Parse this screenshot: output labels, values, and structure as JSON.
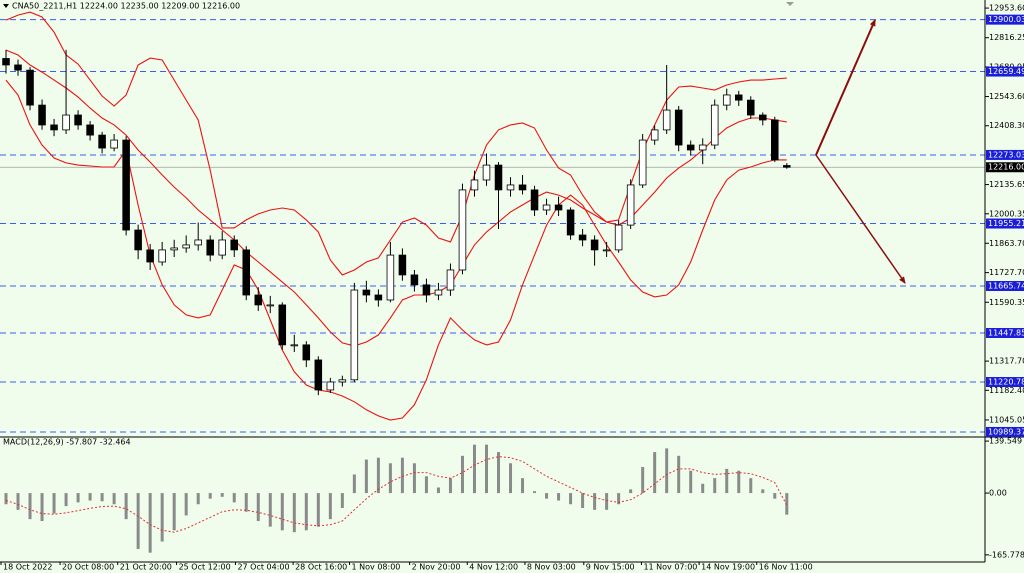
{
  "chart_data": [
    {
      "type": "candlestick",
      "title": "CNA50_2211,H1  12224.00 12235.00 12209.00 12216.00",
      "xlim": [
        -0.5,
        81.5
      ],
      "ylim": [
        10966,
        12991
      ],
      "yticks": [
        {
          "value": 12953.6,
          "label": "12953.60"
        },
        12816.25,
        12680.95,
        {
          "value": 12543.6,
          "label": "12543.60"
        },
        {
          "value": 12408.3,
          "label": "12408.30"
        },
        12135.65,
        12000.35,
        {
          "value": 11863.7,
          "label": "11863.70"
        },
        {
          "value": 11727.7,
          "label": "11727.70"
        },
        11590.35,
        {
          "value": 11317.7,
          "label": "11317.70"
        },
        {
          "value": 11182.4,
          "label": "11182.40"
        },
        11045.05
      ],
      "levels": [
        12900.03,
        12659.49,
        12273.03,
        11955.21,
        11665.74,
        11447.85,
        11220.78,
        10989.37
      ],
      "level_color": "#3a5ef0",
      "level_box_color": "#1a1ed8",
      "current_price": {
        "value": 12216,
        "label": "12216.00"
      },
      "candle_color": "#000000",
      "up_fill": "#ffffff",
      "band_color": "#f01010",
      "open": [
        12720,
        12690,
        12666,
        12504,
        12412,
        12389,
        12458,
        12412,
        12365,
        12305,
        12342,
        11925,
        11833,
        11777,
        11833,
        11842,
        11856,
        11879,
        11809,
        11879,
        11833,
        11624,
        11578,
        11578,
        11393,
        11393,
        11323,
        11184,
        11221,
        11231,
        11647,
        11624,
        11601,
        11809,
        11717,
        11671,
        11624,
        11647,
        11740,
        12111,
        12157,
        12226,
        12111,
        12134,
        12111,
        12018,
        12041,
        12018,
        11902,
        11879,
        11833,
        11833,
        11948,
        12134,
        12342,
        12389,
        12481,
        12319,
        12296,
        12319,
        12504,
        12551,
        12527,
        12458,
        12435,
        12224
      ],
      "high": [
        12760,
        12715,
        12680,
        12530,
        12440,
        12760,
        12480,
        12430,
        12380,
        12370,
        12360,
        11950,
        11860,
        11870,
        11880,
        11900,
        11960,
        11900,
        11920,
        11900,
        11850,
        11660,
        11620,
        11590,
        11440,
        11410,
        11340,
        11240,
        11250,
        11680,
        11690,
        11650,
        11870,
        11840,
        11740,
        11700,
        11680,
        11770,
        12140,
        12200,
        12280,
        12240,
        12170,
        12180,
        12130,
        12070,
        12080,
        12030,
        11930,
        11900,
        11870,
        11970,
        12160,
        12370,
        12410,
        12690,
        12500,
        12340,
        12350,
        12530,
        12580,
        12570,
        12545,
        12470,
        12450,
        12235
      ],
      "low": [
        12650,
        12640,
        12480,
        12390,
        12360,
        12370,
        12390,
        12340,
        12280,
        12290,
        11900,
        11790,
        11740,
        11760,
        11800,
        11820,
        11830,
        11780,
        11790,
        11800,
        11600,
        11550,
        11540,
        11370,
        11360,
        11290,
        11160,
        11170,
        11200,
        11220,
        11590,
        11570,
        11590,
        11690,
        11640,
        11590,
        11600,
        11620,
        11720,
        12080,
        12130,
        11930,
        12080,
        12090,
        11990,
        11995,
        11990,
        11880,
        11850,
        11760,
        11800,
        11820,
        11930,
        12120,
        12320,
        12370,
        12290,
        12270,
        12230,
        12300,
        12480,
        12500,
        12440,
        12410,
        12240,
        12209
      ],
      "close": [
        12690,
        12666,
        12504,
        12412,
        12389,
        12458,
        12412,
        12365,
        12305,
        12342,
        11925,
        11833,
        11777,
        11833,
        11842,
        11856,
        11879,
        11809,
        11879,
        11833,
        11624,
        11578,
        11578,
        11393,
        11393,
        11323,
        11184,
        11221,
        11231,
        11647,
        11624,
        11601,
        11809,
        11717,
        11671,
        11624,
        11647,
        11740,
        12111,
        12157,
        12226,
        12111,
        12134,
        12111,
        12018,
        12041,
        12018,
        11902,
        11879,
        11833,
        11833,
        11948,
        12134,
        12342,
        12389,
        12481,
        12319,
        12296,
        12319,
        12504,
        12551,
        12527,
        12458,
        12435,
        12250,
        12216
      ],
      "bands": {
        "upper": [
          12898,
          12921,
          12935,
          12912,
          12842,
          12736,
          12694,
          12620,
          12546,
          12500,
          12551,
          12690,
          12722,
          12713,
          12620,
          12527,
          12435,
          12203,
          11935,
          11935,
          11972,
          12000,
          12018,
          12027,
          12018,
          11972,
          11916,
          11786,
          11717,
          11740,
          11777,
          11796,
          11879,
          11962,
          11981,
          11948,
          11888,
          11870,
          11995,
          12180,
          12319,
          12389,
          12412,
          12421,
          12398,
          12296,
          12212,
          12180,
          12087,
          12009,
          11962,
          11972,
          12134,
          12296,
          12412,
          12527,
          12588,
          12592,
          12583,
          12574,
          12597,
          12611,
          12620,
          12620,
          12625,
          12629
        ],
        "middle": [
          12759,
          12736,
          12690,
          12657,
          12620,
          12583,
          12541,
          12490,
          12444,
          12412,
          12365,
          12296,
          12240,
          12180,
          12124,
          12074,
          12018,
          11972,
          11925,
          11879,
          11823,
          11777,
          11731,
          11684,
          11638,
          11578,
          11518,
          11453,
          11402,
          11388,
          11406,
          11439,
          11518,
          11601,
          11624,
          11624,
          11638,
          11671,
          11763,
          11856,
          11916,
          11962,
          12009,
          12041,
          12074,
          12101,
          12087,
          12064,
          12027,
          11995,
          11962,
          11948,
          11981,
          12041,
          12101,
          12166,
          12212,
          12250,
          12296,
          12351,
          12398,
          12426,
          12444,
          12444,
          12435,
          12426
        ],
        "lower": [
          12620,
          12551,
          12412,
          12319,
          12259,
          12236,
          12226,
          12222,
          12217,
          12217,
          12296,
          12041,
          11809,
          11671,
          11578,
          11532,
          11518,
          11532,
          11647,
          11763,
          11740,
          11647,
          11508,
          11369,
          11268,
          11207,
          11184,
          11175,
          11156,
          11129,
          11092,
          11064,
          11045,
          11054,
          11115,
          11231,
          11393,
          11518,
          11462,
          11416,
          11393,
          11406,
          11508,
          11671,
          11809,
          11948,
          12041,
          12087,
          12041,
          11948,
          11856,
          11777,
          11694,
          11638,
          11615,
          11624,
          11671,
          11777,
          11925,
          12064,
          12157,
          12203,
          12217,
          12236,
          12250,
          12250
        ]
      }
    },
    {
      "type": "macd",
      "title": "MACD(12,26,9) -57.807 -32.464",
      "xlim": [
        -0.5,
        81.5
      ],
      "ylim": [
        -185,
        150.5
      ],
      "yticks": [
        139.549,
        {
          "value": 0,
          "label": "0.00"
        },
        -165.778
      ],
      "xticks": [
        {
          "value": -0.5,
          "label": "18 Oct 2022"
        },
        {
          "value": 4.5,
          "label": "20 Oct 08:00"
        },
        {
          "value": 9.3,
          "label": "21 Oct 20:00"
        },
        {
          "value": 14.2,
          "label": "25 Oct 12:00"
        },
        {
          "value": 19.1,
          "label": "27 Oct 04:00"
        },
        {
          "value": 23.9,
          "label": "28 Oct 16:00"
        },
        {
          "value": 28.6,
          "label": "1 Nov 08:00"
        },
        {
          "value": 33.6,
          "label": "2 Nov 20:00"
        },
        {
          "value": 38.4,
          "label": "4 Nov 12:00"
        },
        {
          "value": 43.2,
          "label": "8 Nov 03:00"
        },
        {
          "value": 48.1,
          "label": "9 Nov 15:00"
        },
        {
          "value": 52.9,
          "label": "11 Nov 07:00"
        },
        {
          "value": 57.7,
          "label": "14 Nov 19:00"
        },
        {
          "value": 62.5,
          "label": "16 Nov 11:00"
        }
      ],
      "histogram_color": "#8a8a8a",
      "signal_color": "#e03030",
      "histogram": [
        -30,
        -45,
        -70,
        -75,
        -55,
        -35,
        -25,
        -20,
        -22,
        -30,
        -70,
        -150,
        -160,
        -130,
        -100,
        -60,
        -30,
        -15,
        -10,
        -25,
        -50,
        -75,
        -90,
        -100,
        -105,
        -100,
        -90,
        -70,
        -40,
        50,
        90,
        95,
        80,
        95,
        80,
        45,
        15,
        40,
        100,
        130,
        130,
        110,
        80,
        40,
        5,
        -15,
        -20,
        -30,
        -40,
        -45,
        -45,
        -30,
        10,
        70,
        110,
        120,
        100,
        60,
        25,
        40,
        65,
        60,
        40,
        10,
        -15,
        -57.807
      ],
      "signal": [
        -20,
        -30,
        -45,
        -55,
        -57,
        -53,
        -47,
        -41,
        -36,
        -35,
        -42,
        -62,
        -85,
        -100,
        -105,
        -95,
        -80,
        -65,
        -50,
        -45,
        -46,
        -52,
        -60,
        -70,
        -80,
        -85,
        -88,
        -85,
        -75,
        -45,
        -15,
        10,
        30,
        45,
        55,
        55,
        45,
        40,
        55,
        75,
        90,
        98,
        95,
        85,
        65,
        45,
        30,
        15,
        0,
        -12,
        -20,
        -25,
        -18,
        0,
        25,
        50,
        65,
        65,
        55,
        50,
        52,
        55,
        52,
        42,
        28,
        -32.464
      ]
    }
  ]
}
